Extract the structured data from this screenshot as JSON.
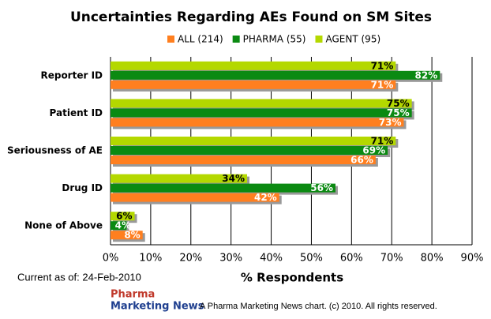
{
  "chart_data": {
    "type": "hbar",
    "title": "Uncertainties Regarding AEs Found on SM Sites",
    "categories": [
      "Reporter ID",
      "Patient ID",
      "Seriousness of AE",
      "Drug ID",
      "None of Above"
    ],
    "series": [
      {
        "name": "ALL (214)",
        "color": "#ff7f1f",
        "label_color": "#ffffff",
        "values": [
          71,
          73,
          66,
          42,
          8
        ],
        "value_labels": [
          "71%",
          "73%",
          "66%",
          "42%",
          "8%"
        ]
      },
      {
        "name": "PHARMA (55)",
        "color": "#0b8a12",
        "label_color": "#ffffff",
        "values": [
          82,
          75,
          69,
          56,
          4
        ],
        "value_labels": [
          "82%",
          "75%",
          "69%",
          "56%",
          "4%"
        ]
      },
      {
        "name": "AGENT (95)",
        "color": "#b4d800",
        "label_color": "#000000",
        "values": [
          71,
          75,
          71,
          34,
          6
        ],
        "value_labels": [
          "71%",
          "75%",
          "71%",
          "34%",
          "6%"
        ]
      }
    ],
    "bar_order": [
      2,
      1,
      0
    ],
    "xlabel": "% Respondents",
    "xlim": [
      0,
      90
    ],
    "xticks": [
      {
        "value": 0,
        "label": "0%"
      },
      {
        "value": 10,
        "label": "10%"
      },
      {
        "value": 20,
        "label": "20%"
      },
      {
        "value": 30,
        "label": "30%"
      },
      {
        "value": 40,
        "label": "40%"
      },
      {
        "value": 50,
        "label": "50%"
      },
      {
        "value": 60,
        "label": "60%"
      },
      {
        "value": 70,
        "label": "70%"
      },
      {
        "value": 80,
        "label": "80%"
      },
      {
        "value": 90,
        "label": "90%"
      }
    ],
    "grid": true,
    "legend": "top"
  },
  "footer": {
    "date_note": "Current as of: 24-Feb-2010",
    "logo_lines": [
      "Pharma",
      "Marketing News"
    ],
    "copyright": "A Pharma Marketing News chart. (c) 2010. All rights reserved."
  }
}
